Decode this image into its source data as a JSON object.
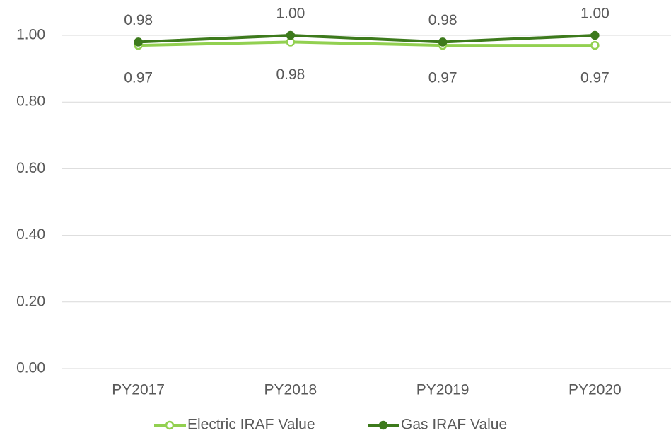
{
  "chart_data": {
    "type": "line",
    "categories": [
      "PY2017",
      "PY2018",
      "PY2019",
      "PY2020"
    ],
    "series": [
      {
        "name": "Electric IRAF Value",
        "color": "#92d050",
        "marker": "hollow",
        "values": [
          0.97,
          0.98,
          0.97,
          0.97
        ],
        "value_labels": [
          "0.97",
          "0.98",
          "0.97",
          "0.97"
        ],
        "label_position": "below"
      },
      {
        "name": "Gas IRAF Value",
        "color": "#3d7a1c",
        "marker": "filled",
        "values": [
          0.98,
          1.0,
          0.98,
          1.0
        ],
        "value_labels": [
          "0.98",
          "1.00",
          "0.98",
          "1.00"
        ],
        "label_position": "above"
      }
    ],
    "ylim": [
      0,
      1
    ],
    "yticks": [
      {
        "value": 0,
        "label": "0.00"
      },
      {
        "value": 0.2,
        "label": "0.20"
      },
      {
        "value": 0.4,
        "label": "0.40"
      },
      {
        "value": 0.6,
        "label": "0.60"
      },
      {
        "value": 0.8,
        "label": "0.80"
      },
      {
        "value": 1,
        "label": "1.00"
      }
    ],
    "grid": true,
    "legend": "bottom"
  }
}
